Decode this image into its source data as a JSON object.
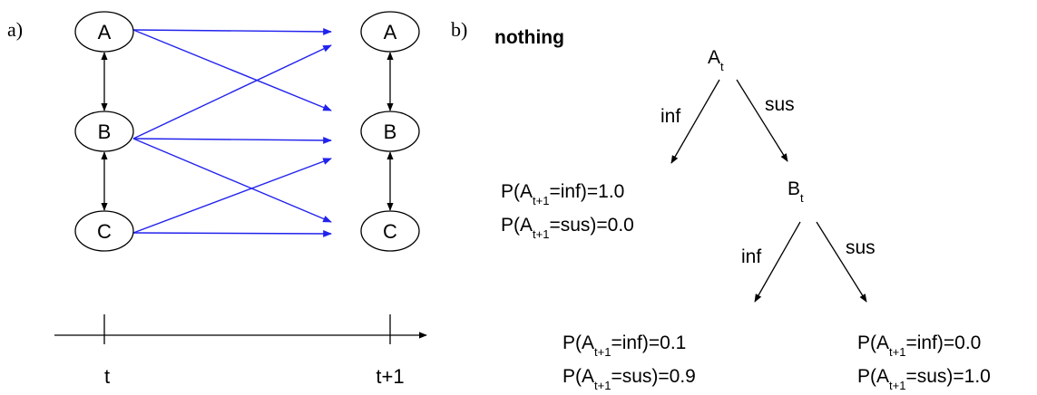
{
  "panel_a": {
    "label": "a)",
    "left_nodes": [
      "A",
      "B",
      "C"
    ],
    "right_nodes": [
      "A",
      "B",
      "C"
    ],
    "axis_ticks": [
      "t",
      "t+1"
    ]
  },
  "panel_b": {
    "label": "b)",
    "title": "nothing",
    "nodes": [
      {
        "name": "A",
        "sub": "t"
      },
      {
        "name": "B",
        "sub": "t"
      }
    ],
    "edges": [
      "inf",
      "sus",
      "inf",
      "sus"
    ],
    "leaves": [
      [
        {
          "pre": "P(A",
          "sub": "t+1",
          "post": "=inf)=1.0"
        },
        {
          "pre": "P(A",
          "sub": "t+1",
          "post": "=sus)=0.0"
        }
      ],
      [
        {
          "pre": "P(A",
          "sub": "t+1",
          "post": "=inf)=0.1"
        },
        {
          "pre": "P(A",
          "sub": "t+1",
          "post": "=sus)=0.9"
        }
      ],
      [
        {
          "pre": "P(A",
          "sub": "t+1",
          "post": "=inf)=0.0"
        },
        {
          "pre": "P(A",
          "sub": "t+1",
          "post": "=sus)=1.0"
        }
      ]
    ]
  }
}
